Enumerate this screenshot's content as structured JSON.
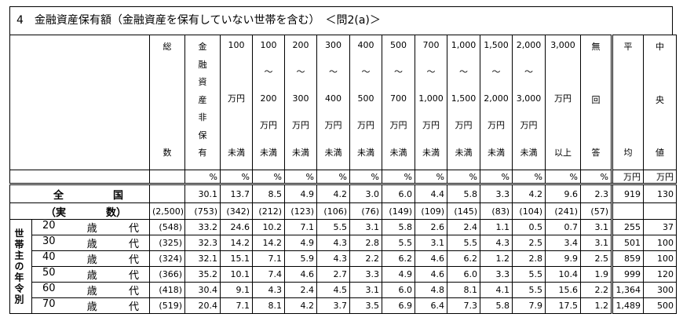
{
  "title": "4　金融資産保有額（金融資産を保有していない世帯を含む）　＜問2(a)＞",
  "columns": [
    {
      "lines": [
        "総",
        "数"
      ]
    },
    {
      "lines": [
        "金",
        "融",
        "資",
        "産",
        "非",
        "保",
        "有"
      ],
      "unit": "%"
    },
    {
      "lines": [
        "100",
        "万円",
        "未満"
      ],
      "unit": "%"
    },
    {
      "lines": [
        "100",
        "～",
        "200",
        "万円",
        "未満"
      ],
      "unit": "%"
    },
    {
      "lines": [
        "200",
        "～",
        "300",
        "万円",
        "未満"
      ],
      "unit": "%"
    },
    {
      "lines": [
        "300",
        "～",
        "400",
        "万円",
        "未満"
      ],
      "unit": "%"
    },
    {
      "lines": [
        "400",
        "～",
        "500",
        "万円",
        "未満"
      ],
      "unit": "%"
    },
    {
      "lines": [
        "500",
        "～",
        "700",
        "万円",
        "未満"
      ],
      "unit": "%"
    },
    {
      "lines": [
        "700",
        "～",
        "1,000",
        "万円",
        "未満"
      ],
      "unit": "%"
    },
    {
      "lines": [
        "1,000",
        "～",
        "1,500",
        "万円",
        "未満"
      ],
      "unit": "%"
    },
    {
      "lines": [
        "1,500",
        "～",
        "2,000",
        "万円",
        "未満"
      ],
      "unit": "%"
    },
    {
      "lines": [
        "2,000",
        "～",
        "3,000",
        "万円",
        "未満"
      ],
      "unit": "%"
    },
    {
      "lines": [
        "3,000",
        "万円",
        "以上"
      ],
      "unit": "%"
    },
    {
      "lines": [
        "無",
        "回",
        "答"
      ],
      "unit": "%"
    },
    {
      "lines": [
        "平",
        "均"
      ],
      "unit": "万円"
    },
    {
      "lines": [
        "中",
        "央",
        "値"
      ],
      "unit": "万円"
    }
  ],
  "group_label": "世帯主の年令別",
  "rows": [
    {
      "label": [
        "全",
        "国"
      ],
      "cells": [
        null,
        "30.1",
        "13.7",
        "8.5",
        "4.9",
        "4.2",
        "3.0",
        "6.0",
        "4.4",
        "5.8",
        "3.3",
        "4.2",
        "9.6",
        "2.3",
        "919",
        "130"
      ]
    },
    {
      "label": [
        "（実",
        "数）"
      ],
      "cells": [
        "(2,500)",
        "(753)",
        "(342)",
        "(212)",
        "(123)",
        "(106)",
        "(76)",
        "(149)",
        "(109)",
        "(145)",
        "(83)",
        "(104)",
        "(241)",
        "(57)",
        null,
        null
      ]
    },
    {
      "label": [
        "20",
        "歳",
        "代"
      ],
      "cells": [
        "(548)",
        "33.2",
        "24.6",
        "10.2",
        "7.1",
        "5.5",
        "3.1",
        "5.8",
        "2.6",
        "2.4",
        "1.1",
        "0.5",
        "0.7",
        "3.1",
        "255",
        "37"
      ]
    },
    {
      "label": [
        "30",
        "歳",
        "代"
      ],
      "cells": [
        "(325)",
        "32.3",
        "14.2",
        "14.2",
        "4.9",
        "4.3",
        "2.8",
        "5.5",
        "3.1",
        "5.5",
        "4.3",
        "2.5",
        "3.4",
        "3.1",
        "501",
        "100"
      ]
    },
    {
      "label": [
        "40",
        "歳",
        "代"
      ],
      "cells": [
        "(324)",
        "32.1",
        "15.1",
        "7.1",
        "5.9",
        "4.3",
        "2.2",
        "6.2",
        "4.6",
        "6.2",
        "1.2",
        "2.8",
        "9.9",
        "2.5",
        "859",
        "100"
      ]
    },
    {
      "label": [
        "50",
        "歳",
        "代"
      ],
      "cells": [
        "(366)",
        "35.2",
        "10.1",
        "7.4",
        "4.6",
        "2.7",
        "3.3",
        "4.9",
        "4.6",
        "6.0",
        "3.3",
        "5.5",
        "10.4",
        "1.9",
        "999",
        "120"
      ]
    },
    {
      "label": [
        "60",
        "歳",
        "代"
      ],
      "cells": [
        "(418)",
        "30.4",
        "9.1",
        "4.3",
        "2.4",
        "4.5",
        "3.1",
        "6.0",
        "4.8",
        "8.1",
        "4.1",
        "5.5",
        "15.6",
        "2.2",
        "1,364",
        "300"
      ]
    },
    {
      "label": [
        "70",
        "歳",
        "代"
      ],
      "cells": [
        "(519)",
        "20.4",
        "7.1",
        "8.1",
        "4.2",
        "3.7",
        "3.5",
        "6.9",
        "6.4",
        "7.3",
        "5.8",
        "7.9",
        "17.5",
        "1.2",
        "1,489",
        "500"
      ]
    }
  ]
}
